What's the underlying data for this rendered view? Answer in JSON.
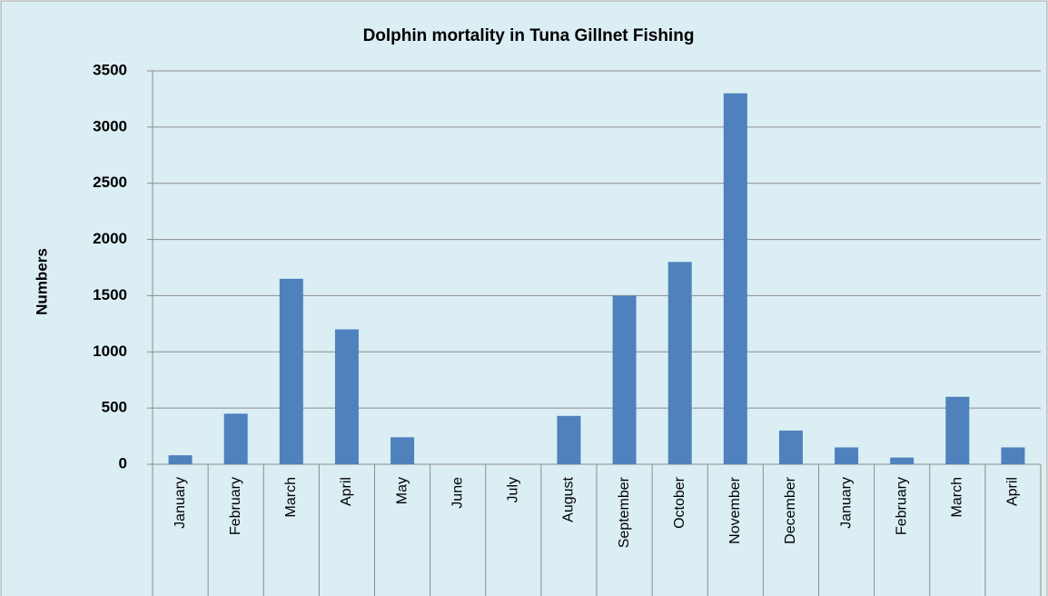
{
  "chart_data": {
    "type": "bar",
    "title": "Dolphin mortality in Tuna Gillnet Fishing",
    "y_label": "Numbers",
    "categories": [
      "January",
      "February",
      "March",
      "April",
      "May",
      "June",
      "July",
      "August",
      "September",
      "October",
      "November",
      "December",
      "January",
      "February",
      "March",
      "April"
    ],
    "values": [
      80,
      450,
      1650,
      1200,
      240,
      0,
      0,
      430,
      1500,
      1800,
      3300,
      300,
      150,
      60,
      600,
      150
    ],
    "color": "#4f81bd",
    "ylim": [
      0,
      3500
    ],
    "yticks": [
      0,
      500,
      1000,
      1500,
      2000,
      2500,
      3000,
      3500
    ],
    "grid": true
  }
}
